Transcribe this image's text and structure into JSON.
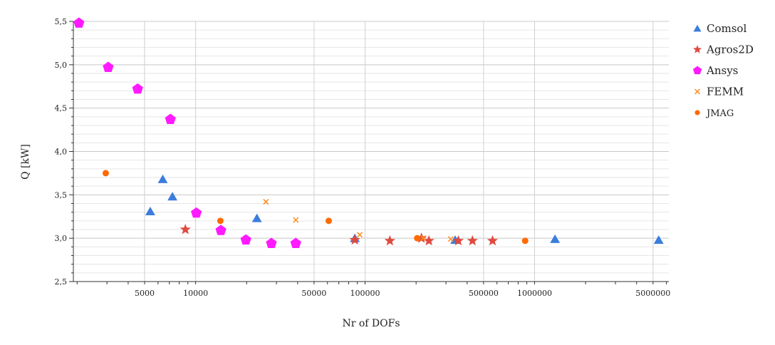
{
  "chart_data": {
    "type": "scatter",
    "xlabel": "Nr of DOFs",
    "ylabel": "Q [kW]",
    "xscale": "log",
    "xlim": [
      1900,
      6200000
    ],
    "ylim": [
      2.5,
      5.5
    ],
    "x_ticks": [
      5000,
      10000,
      50000,
      100000,
      500000,
      1000000,
      5000000
    ],
    "x_tick_labels": [
      "5000",
      "10000",
      "50000",
      "100000",
      "500000",
      "1000000",
      "5000000"
    ],
    "y_ticks": [
      2.5,
      3.0,
      3.5,
      4.0,
      4.5,
      5.0,
      5.5
    ],
    "y_tick_labels": [
      "2,5",
      "3,0",
      "3,5",
      "4,0",
      "4,5",
      "5,0",
      "5,5"
    ],
    "grid": true,
    "legend_position": "right",
    "series": [
      {
        "name": "Comsol",
        "marker": "triangle",
        "color": "#3b7ddd",
        "points": [
          [
            5400,
            3.31
          ],
          [
            6400,
            3.68
          ],
          [
            7300,
            3.48
          ],
          [
            23000,
            3.23
          ],
          [
            87000,
            3.0
          ],
          [
            340000,
            2.98
          ],
          [
            1320000,
            2.99
          ],
          [
            5400000,
            2.98
          ]
        ]
      },
      {
        "name": "Agros2D",
        "marker": "star",
        "color": "#e04a3f",
        "points": [
          [
            8700,
            3.1
          ],
          [
            87000,
            2.98
          ],
          [
            140000,
            2.97
          ],
          [
            215000,
            3.0
          ],
          [
            238000,
            2.97
          ],
          [
            355000,
            2.97
          ],
          [
            430000,
            2.97
          ],
          [
            565000,
            2.97
          ]
        ]
      },
      {
        "name": "Ansys",
        "marker": "pentagon",
        "color": "#ff1aff",
        "points": [
          [
            2050,
            5.48
          ],
          [
            3050,
            4.97
          ],
          [
            4550,
            4.72
          ],
          [
            7100,
            4.37
          ],
          [
            10100,
            3.29
          ],
          [
            14100,
            3.09
          ],
          [
            19800,
            2.98
          ],
          [
            28000,
            2.94
          ],
          [
            39000,
            2.94
          ]
        ]
      },
      {
        "name": "FEMM",
        "marker": "cross",
        "color": "#ff8c1a",
        "points": [
          [
            26000,
            3.42
          ],
          [
            39000,
            3.21
          ],
          [
            93000,
            3.04
          ],
          [
            220000,
            3.0
          ],
          [
            320000,
            2.99
          ]
        ]
      },
      {
        "name": "JMAG",
        "marker": "circle",
        "color": "#ff6a00",
        "points": [
          [
            2950,
            3.75
          ],
          [
            14000,
            3.2
          ],
          [
            61000,
            3.2
          ],
          [
            203000,
            3.0
          ],
          [
            880000,
            2.97
          ]
        ]
      }
    ]
  }
}
